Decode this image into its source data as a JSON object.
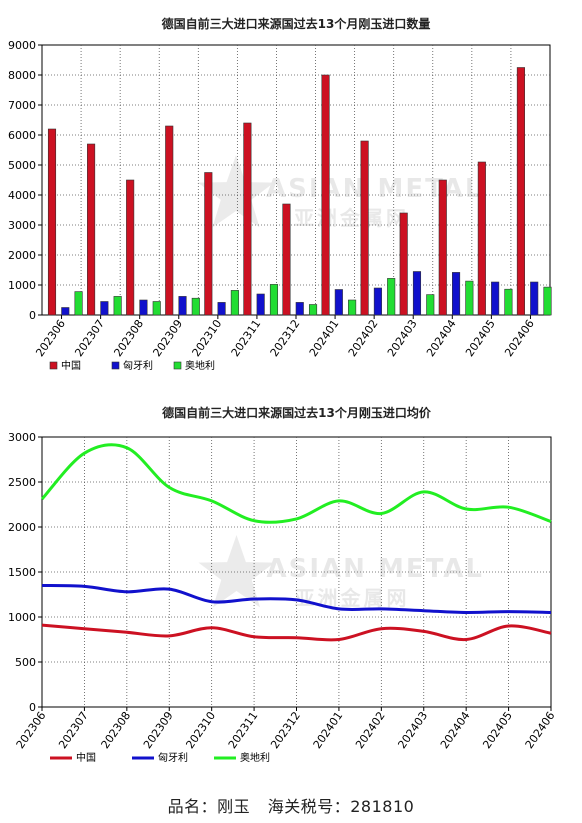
{
  "chart_data": [
    {
      "type": "bar",
      "title": "德国自前三大进口来源国过去13个月刚玉进口数量",
      "categories": [
        "202306",
        "202307",
        "202308",
        "202309",
        "202310",
        "202311",
        "202312",
        "202401",
        "202402",
        "202403",
        "202404",
        "202405",
        "202406"
      ],
      "ylim": [
        0,
        9000
      ],
      "yticks": [
        0,
        1000,
        2000,
        3000,
        4000,
        5000,
        6000,
        7000,
        8000,
        9000
      ],
      "grid": true,
      "legend_position": "bottom-left",
      "series": [
        {
          "name": "中国",
          "color": "#cc1122",
          "values": [
            6200,
            5700,
            4500,
            6300,
            4750,
            6400,
            3700,
            8000,
            5800,
            3400,
            4500,
            5100,
            8250
          ]
        },
        {
          "name": "匈牙利",
          "color": "#1111cc",
          "values": [
            250,
            450,
            500,
            620,
            420,
            700,
            420,
            850,
            900,
            1450,
            1420,
            1100,
            1100
          ]
        },
        {
          "name": "奥地利",
          "color": "#22dd33",
          "values": [
            780,
            620,
            450,
            560,
            820,
            1020,
            350,
            500,
            1220,
            680,
            1130,
            860,
            930
          ]
        }
      ]
    },
    {
      "type": "line",
      "title": "德国自前三大进口来源国过去13个月刚玉进口均价",
      "categories": [
        "202306",
        "202307",
        "202308",
        "202309",
        "202310",
        "202311",
        "202312",
        "202401",
        "202402",
        "202403",
        "202404",
        "202405",
        "202406"
      ],
      "ylim": [
        0,
        3000
      ],
      "yticks": [
        0,
        500,
        1000,
        1500,
        2000,
        2500,
        3000
      ],
      "grid": true,
      "legend_position": "bottom-left",
      "series": [
        {
          "name": "中国",
          "color": "#cc1122",
          "values": [
            910,
            870,
            830,
            790,
            880,
            780,
            770,
            750,
            870,
            840,
            750,
            900,
            820
          ]
        },
        {
          "name": "匈牙利",
          "color": "#1111cc",
          "values": [
            1350,
            1340,
            1280,
            1310,
            1170,
            1200,
            1190,
            1090,
            1090,
            1070,
            1050,
            1060,
            1050
          ]
        },
        {
          "name": "奥地利",
          "color": "#22ee22",
          "values": [
            2310,
            2820,
            2880,
            2440,
            2290,
            2070,
            2090,
            2290,
            2150,
            2390,
            2200,
            2220,
            2060
          ]
        }
      ]
    }
  ],
  "watermark": {
    "text_en": "ASIAN METAL",
    "text_cn": "亚洲金属网"
  },
  "footer": {
    "product_label": "品名：刚玉",
    "hs_label": "海关税号：281810"
  }
}
